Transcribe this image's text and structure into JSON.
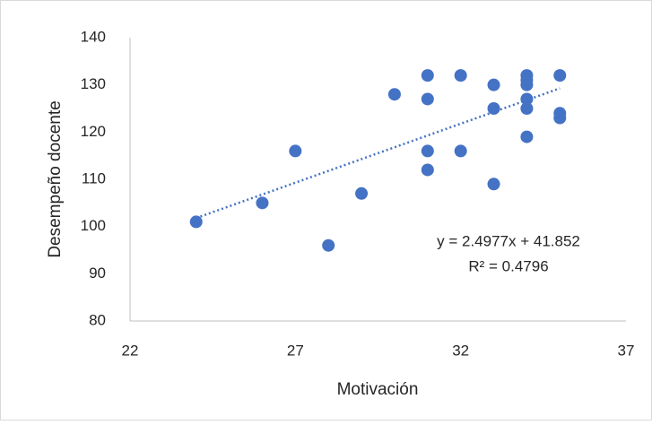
{
  "chart_data": {
    "type": "scatter",
    "color": "#4472c4",
    "x_label": "Motivación",
    "y_label": "Desempeño docente",
    "x": [
      24,
      26,
      27,
      28,
      29,
      30,
      31,
      31,
      31,
      31,
      32,
      32,
      33,
      33,
      33,
      34,
      34,
      34,
      34,
      34,
      34,
      35,
      35,
      35
    ],
    "values": [
      101,
      105,
      116,
      96,
      107,
      128,
      132,
      127,
      116,
      112,
      132,
      116,
      130,
      125,
      109,
      132,
      131,
      130,
      127,
      125,
      119,
      132,
      124,
      123
    ],
    "xlim": [
      22,
      37
    ],
    "xticks": [
      22,
      27,
      32,
      37
    ],
    "ylim": [
      80,
      140
    ],
    "yticks": [
      80,
      90,
      100,
      110,
      120,
      130,
      140
    ],
    "grid": false,
    "trendline": {
      "slope": 2.4977,
      "intercept": 41.852,
      "label": "y = 2.4977x + 41.852",
      "r2_label": "R² = 0.4796"
    }
  }
}
